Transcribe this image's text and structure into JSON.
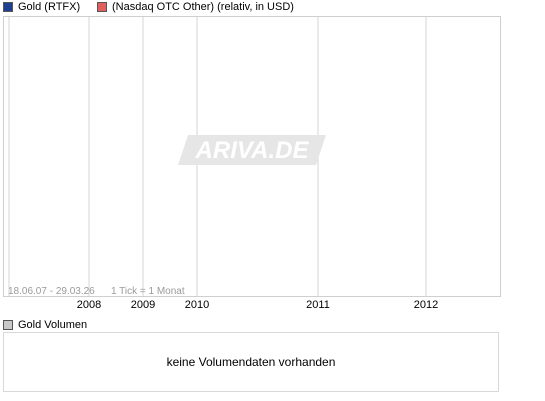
{
  "legend": [
    {
      "label": "Gold (RTFX)",
      "color": "#1f3f8f"
    },
    {
      "label": "(Nasdaq OTC Other) (relativ, in USD)",
      "color": "#e06060"
    }
  ],
  "watermark": "ARIVA.DE",
  "chart_data": {
    "type": "line",
    "period_label": "18.06.07 - 29.03.26",
    "tick_label": "1 Tick = 1 Monat",
    "x_ticks": [
      "2008",
      "2009",
      "2010",
      "2011",
      "2012"
    ],
    "series": [],
    "grid": true
  },
  "volume": {
    "legend_label": "Gold Volumen",
    "legend_color": "#c8c8c8",
    "message": "keine Volumendaten vorhanden"
  }
}
